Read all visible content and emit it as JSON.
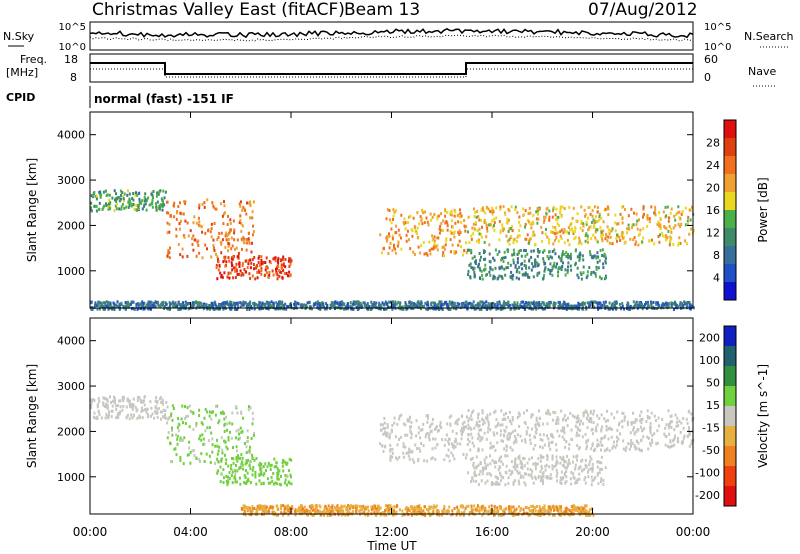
{
  "header": {
    "station": "Christmas Valley East (fitACF)",
    "beam": "Beam 13",
    "date": "07/Aug/2012"
  },
  "noise_panel": {
    "left_label": "N.Sky",
    "left_ticks": [
      "10^5",
      "10^0"
    ],
    "right_ticks": [
      "10^5",
      "10^0"
    ],
    "right_label": "N.Search"
  },
  "freq_panel": {
    "left_label_line1": "Freq.",
    "left_label_line2": "[MHz]",
    "left_ticks": [
      "18",
      "8"
    ],
    "right_ticks": [
      "60",
      "0"
    ],
    "right_label": "Nave"
  },
  "cpid": {
    "label": "CPID",
    "value": "normal (fast) -151 IF"
  },
  "colors": {
    "power_scale": [
      "#1010d0",
      "#2050c8",
      "#3a6e9a",
      "#3f8a6a",
      "#4ab04a",
      "#e8d820",
      "#f0a030",
      "#f07020",
      "#e04010",
      "#e01010"
    ],
    "velocity_scale": [
      "#1020c0",
      "#206070",
      "#309040",
      "#70d040",
      "#c8c8c0",
      "#e8b040",
      "#f08020",
      "#f04010",
      "#e01010"
    ]
  },
  "chart_data": [
    {
      "type": "heatmap",
      "title": "Power",
      "xlabel": "",
      "ylabel": "Slant Range [km]",
      "colorbar_label": "Power [dB]",
      "colorbar_ticks": [
        "28",
        "24",
        "20",
        "16",
        "12",
        "8",
        "4"
      ],
      "x_ticks": [
        "00:00",
        "04:00",
        "08:00",
        "12:00",
        "16:00",
        "20:00",
        "00:00"
      ],
      "y_ticks": [
        "4000",
        "3000",
        "2000",
        "1000"
      ],
      "xlim_hours": [
        0,
        24
      ],
      "ylim_km": [
        180,
        4500
      ],
      "echo_regions": [
        {
          "name": "early far band",
          "t_start": 0.0,
          "t_end": 3.0,
          "range_km": [
            2350,
            2800
          ],
          "power_db": 12
        },
        {
          "name": "morning descending band",
          "t_start": 3.0,
          "t_end": 6.5,
          "range_km": [
            1300,
            2600
          ],
          "power_db": 22
        },
        {
          "name": "near-range enhancement",
          "t_start": 5.0,
          "t_end": 8.0,
          "range_km": [
            850,
            1350
          ],
          "power_db": 26
        },
        {
          "name": "afternoon descending band",
          "t_start": 11.5,
          "t_end": 15.0,
          "range_km": [
            1350,
            2400
          ],
          "power_db": 20
        },
        {
          "name": "evening band",
          "t_start": 15.0,
          "t_end": 24.0,
          "range_km": [
            1600,
            2450
          ],
          "power_db": 18
        },
        {
          "name": "evening lower band",
          "t_start": 15.0,
          "t_end": 20.5,
          "range_km": [
            850,
            1500
          ],
          "power_db": 10
        },
        {
          "name": "ground scatter floor",
          "t_start": 0.0,
          "t_end": 24.0,
          "range_km": [
            180,
            350
          ],
          "power_db": 8
        }
      ]
    },
    {
      "type": "heatmap",
      "title": "Velocity",
      "xlabel": "Time UT",
      "ylabel": "Slant Range [km]",
      "colorbar_label": "Velocity [m s^-1]",
      "colorbar_ticks": [
        "200",
        "100",
        "50",
        "15",
        "-15",
        "-50",
        "-100",
        "-200"
      ],
      "x_ticks": [
        "00:00",
        "04:00",
        "08:00",
        "12:00",
        "16:00",
        "20:00",
        "00:00"
      ],
      "y_ticks": [
        "4000",
        "3000",
        "2000",
        "1000"
      ],
      "xlim_hours": [
        0,
        24
      ],
      "ylim_km": [
        180,
        4500
      ],
      "echo_regions": [
        {
          "name": "early far band",
          "t_start": 0.0,
          "t_end": 3.0,
          "range_km": [
            2300,
            2800
          ],
          "velocity": 0
        },
        {
          "name": "morning descending band",
          "t_start": 3.0,
          "t_end": 6.5,
          "range_km": [
            1300,
            2600
          ],
          "velocity": 30
        },
        {
          "name": "near-range enhancement",
          "t_start": 5.0,
          "t_end": 8.0,
          "range_km": [
            850,
            1450
          ],
          "velocity": 40
        },
        {
          "name": "afternoon descending band",
          "t_start": 11.5,
          "t_end": 15.0,
          "range_km": [
            1350,
            2400
          ],
          "velocity": 0
        },
        {
          "name": "evening band",
          "t_start": 15.0,
          "t_end": 24.0,
          "range_km": [
            1600,
            2500
          ],
          "velocity": 0
        },
        {
          "name": "evening lower band",
          "t_start": 15.0,
          "t_end": 20.5,
          "range_km": [
            850,
            1500
          ],
          "velocity": 0
        },
        {
          "name": "near-range floor",
          "t_start": 6.0,
          "t_end": 20.0,
          "range_km": [
            180,
            400
          ],
          "velocity": -60
        }
      ]
    }
  ]
}
